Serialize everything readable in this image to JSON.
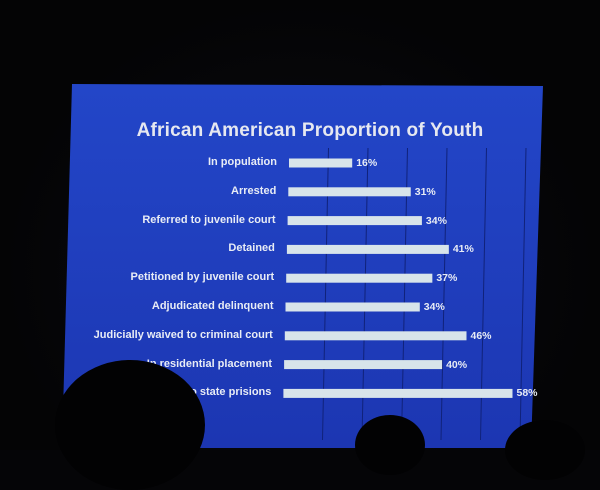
{
  "chart_data": {
    "type": "bar",
    "orientation": "horizontal",
    "title": "African American Proportion of Youth",
    "categories": [
      "In population",
      "Arrested",
      "Referred to juvenile court",
      "Detained",
      "Petitioned by juvenile court",
      "Adjudicated delinquent",
      "Judicially waived to criminal court",
      "In residential placement",
      "to state prisions"
    ],
    "values": [
      16,
      31,
      34,
      41,
      37,
      34,
      46,
      40,
      58
    ],
    "value_labels": [
      "16%",
      "31%",
      "34%",
      "41%",
      "37%",
      "34%",
      "46%",
      "40%",
      "58%"
    ],
    "xlim": [
      0,
      60
    ],
    "grid": true,
    "colors": {
      "background": "#1f3fc0",
      "bar": "#d8e4ea",
      "text": "#e8ecf5",
      "grid": "#10227a"
    }
  }
}
